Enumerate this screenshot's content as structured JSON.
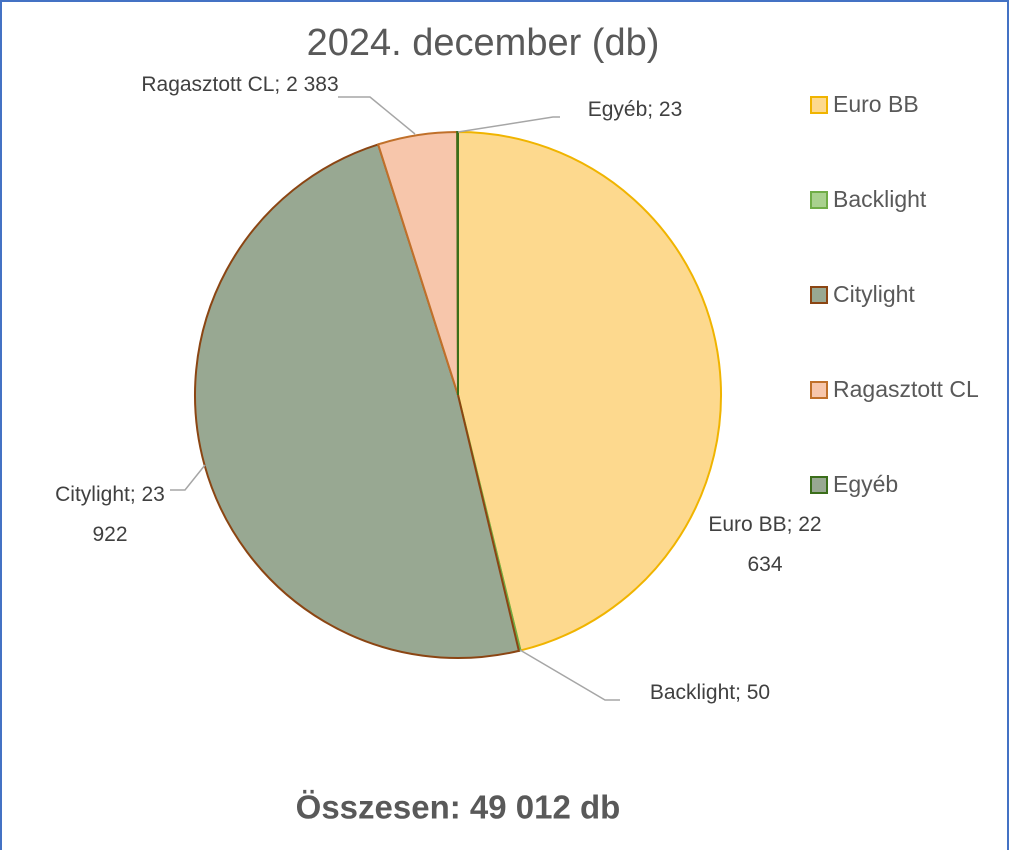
{
  "chart_data": {
    "type": "pie",
    "title": "2024. december (db)",
    "categories": [
      "Euro BB",
      "Backlight",
      "Citylight",
      "Ragasztott CL",
      "Egyéb"
    ],
    "values": [
      22634,
      50,
      23922,
      2383,
      23
    ],
    "value_labels": [
      "Euro BB; 22 634",
      "Backlight; 50",
      "Citylight; 23 922",
      "Ragasztott CL; 2 383",
      "Egyéb; 23"
    ],
    "colors": [
      "#fdd98e",
      "#a9d18e",
      "#98a892",
      "#f7c6ab",
      "#98a892"
    ],
    "border_colors": [
      "#f0b400",
      "#70ad47",
      "#8b4513",
      "#c0702a",
      "#3b6e1a"
    ],
    "legend": "right",
    "footer": "Összesen: 49 012 db"
  }
}
